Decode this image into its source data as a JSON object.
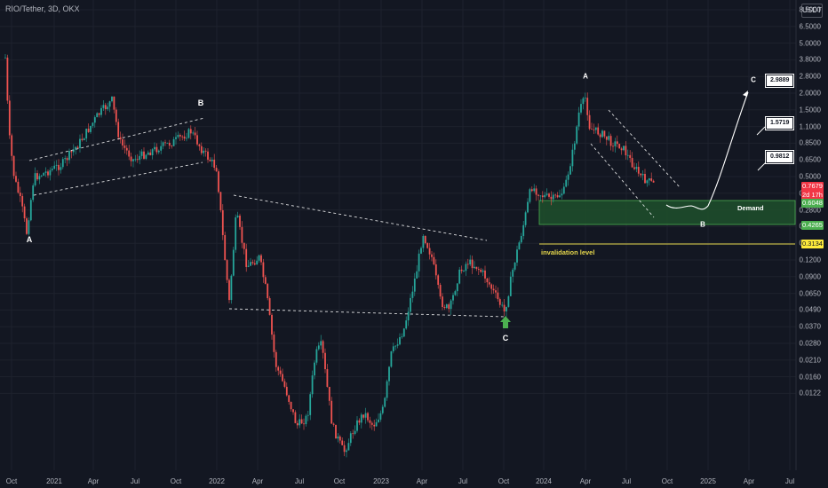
{
  "header": {
    "title": "RIO/Tether, 3D, OKX",
    "currency": "USDT"
  },
  "y_axis": [
    "8.5000",
    "6.5000",
    "5.0000",
    "3.8000",
    "2.8000",
    "2.0000",
    "1.5000",
    "1.1000",
    "0.8500",
    "0.6500",
    "0.5000",
    "0.3800",
    "0.2800",
    "0.2100",
    "0.1600",
    "0.1200",
    "0.0900",
    "0.0650",
    "0.0490",
    "0.0370",
    "0.0280",
    "0.0210",
    "0.0160",
    "0.0122"
  ],
  "x_axis": [
    "Oct",
    "2021",
    "Apr",
    "Jul",
    "Oct",
    "2022",
    "Apr",
    "Jul",
    "Oct",
    "2023",
    "Apr",
    "Jul",
    "Oct",
    "2024",
    "Apr",
    "Jul",
    "Oct",
    "2025",
    "Apr",
    "Jul"
  ],
  "price_tags": {
    "last": {
      "price": "0.7679",
      "countdown": "2d 17h",
      "color": "#f23645"
    },
    "demand_top": {
      "price": "0.6048",
      "color": "#4caf50"
    },
    "demand_bottom": {
      "price": "0.4265",
      "color": "#4caf50"
    },
    "invalidation": {
      "price": "0.3134",
      "color": "#ffeb3b"
    }
  },
  "annotations": {
    "wave_a1": "A",
    "wave_b1": "B",
    "wave_c1": "C",
    "wave_a2": "A",
    "wave_b2": "B",
    "wave_c2": "C",
    "demand_label": "Demand",
    "invalidation_label": "invalidation level",
    "targets": [
      "2.9889",
      "1.5719",
      "0.9812"
    ]
  },
  "colors": {
    "background": "#131722",
    "up": "#26a69a",
    "down": "#ef5350",
    "demand_zone": "#1e4d2b",
    "grid": "#1e222d"
  },
  "icons": [
    "green-up-arrow-icon"
  ]
}
